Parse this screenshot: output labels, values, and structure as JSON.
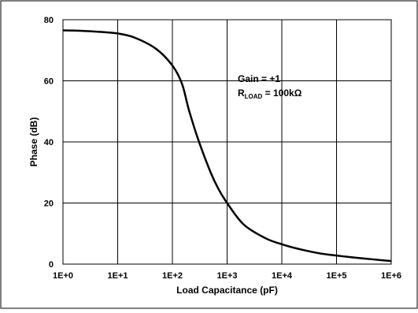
{
  "chart_data": {
    "type": "line",
    "xlabel": "Load Capacitance (pF)",
    "ylabel": "Phase (dB)",
    "x_scale": "log",
    "xlim": [
      1,
      1000000
    ],
    "ylim": [
      0,
      80
    ],
    "grid": true,
    "x_ticks": [
      {
        "value": 1,
        "label": "1E+0"
      },
      {
        "value": 10,
        "label": "1E+1"
      },
      {
        "value": 100,
        "label": "1E+2"
      },
      {
        "value": 1000,
        "label": "1E+3"
      },
      {
        "value": 10000,
        "label": "1E+4"
      },
      {
        "value": 100000,
        "label": "1E+5"
      },
      {
        "value": 1000000,
        "label": "1E+6"
      }
    ],
    "y_ticks": [
      {
        "value": 0,
        "label": "0"
      },
      {
        "value": 20,
        "label": "20"
      },
      {
        "value": 40,
        "label": "40"
      },
      {
        "value": 60,
        "label": "60"
      },
      {
        "value": 80,
        "label": "80"
      }
    ],
    "annotation": {
      "line1": "Gain = +1",
      "line2_prefix": "R",
      "line2_sub": "LOAD",
      "line2_suffix": " = 100kΩ"
    },
    "series": [
      {
        "x": [
          1,
          2,
          5,
          10,
          20,
          50,
          100,
          150,
          200,
          300,
          500,
          700,
          1000,
          2000,
          5000,
          10000,
          20000,
          50000,
          100000,
          200000,
          500000,
          1000000
        ],
        "y": [
          76.5,
          76.4,
          76.0,
          75.5,
          74.2,
          70.5,
          65.0,
          59.0,
          50.5,
          40.5,
          30.0,
          24.5,
          20.0,
          13.0,
          8.5,
          6.5,
          5.0,
          3.5,
          2.8,
          2.2,
          1.5,
          1.0
        ]
      }
    ],
    "line_color": "#000000"
  }
}
